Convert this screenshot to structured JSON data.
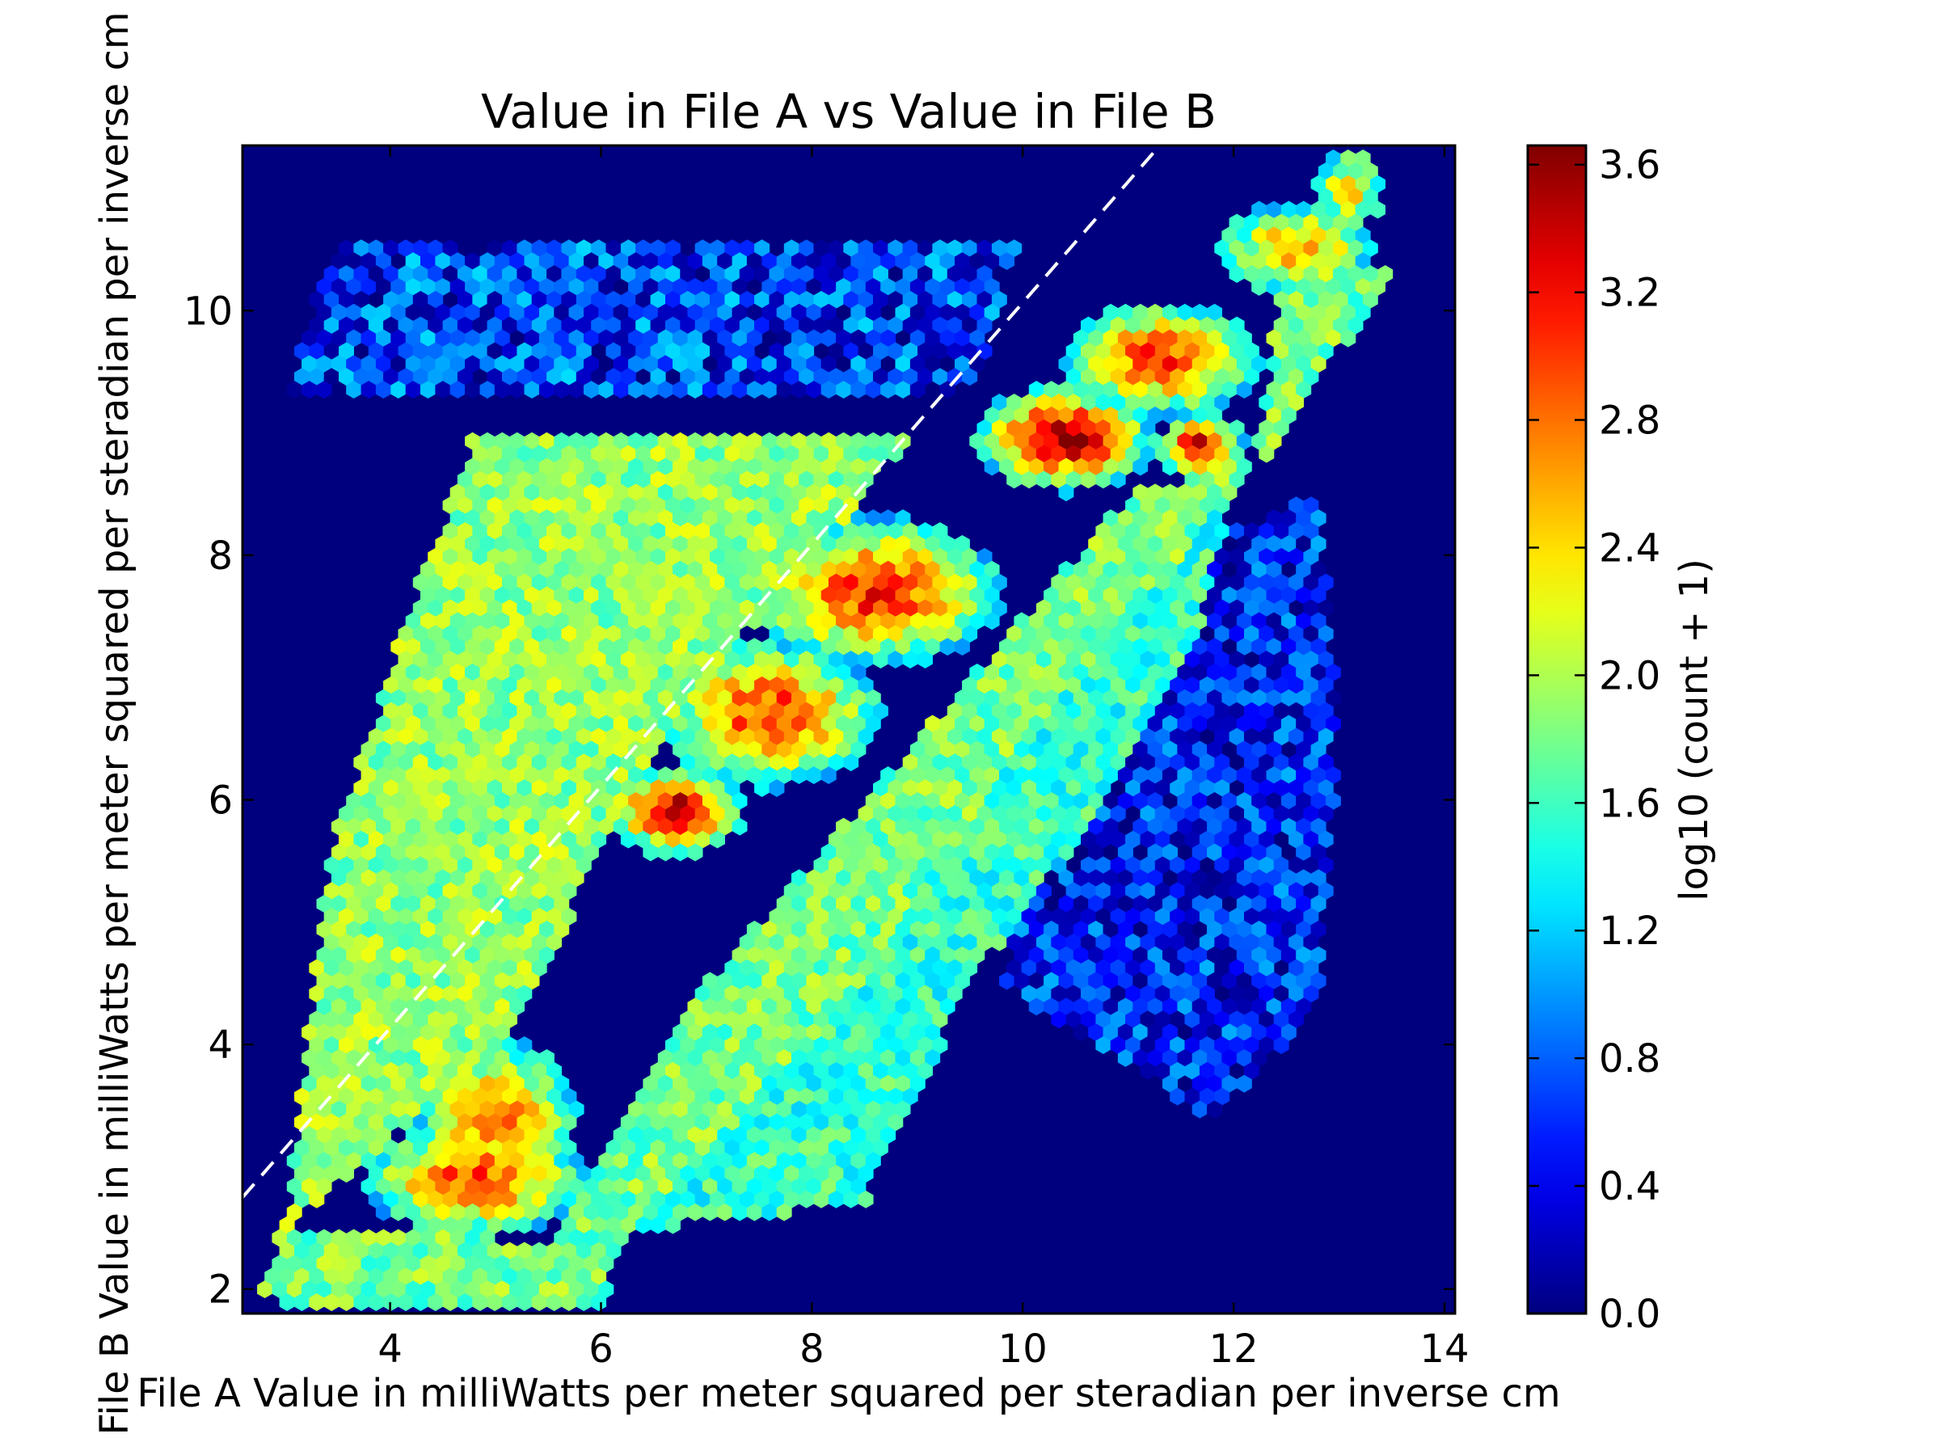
{
  "chart_data": {
    "type": "heatmap",
    "subtype": "hexbin",
    "title": "Value in File A vs Value in File B",
    "xlabel": "File A Value in milliWatts per meter squared per steradian per inverse cm",
    "ylabel": "File B Value in milliWatts per meter squared per steradian per inverse cm",
    "xlim": [
      2.6,
      14.1
    ],
    "ylim": [
      1.8,
      11.35
    ],
    "xticks": [
      4,
      6,
      8,
      10,
      12,
      14
    ],
    "yticks": [
      2,
      4,
      6,
      8,
      10
    ],
    "background_color": "#00007f",
    "grid": false,
    "colorbar": {
      "label": "log10 (count + 1)",
      "min": 0.0,
      "max": 3.66,
      "ticks": [
        "0.0",
        "0.4",
        "0.8",
        "1.2",
        "1.6",
        "2.0",
        "2.4",
        "2.8",
        "3.2",
        "3.6"
      ],
      "colormap": "jet"
    },
    "reference_line": {
      "label": "y = x",
      "style": "dashed",
      "color": "#ffffff",
      "from": [
        2.6,
        2.75
      ],
      "to": [
        11.3,
        11.35
      ]
    },
    "density_components": [
      {
        "center": [
          4.8,
          2.9
        ],
        "spread": [
          0.8,
          0.35
        ],
        "peak": 2.95
      },
      {
        "center": [
          5.0,
          3.4
        ],
        "spread": [
          0.6,
          0.5
        ],
        "peak": 2.75
      },
      {
        "center": [
          6.7,
          5.9
        ],
        "spread": [
          0.45,
          0.25
        ],
        "peak": 3.55
      },
      {
        "center": [
          7.6,
          6.7
        ],
        "spread": [
          0.8,
          0.45
        ],
        "peak": 3.0
      },
      {
        "center": [
          8.6,
          7.7
        ],
        "spread": [
          0.9,
          0.45
        ],
        "peak": 3.1
      },
      {
        "center": [
          10.4,
          8.95
        ],
        "spread": [
          0.6,
          0.3
        ],
        "peak": 3.55
      },
      {
        "center": [
          11.7,
          8.9
        ],
        "spread": [
          0.3,
          0.2
        ],
        "peak": 3.3
      },
      {
        "center": [
          11.3,
          9.6
        ],
        "spread": [
          0.7,
          0.35
        ],
        "peak": 3.0
      },
      {
        "center": [
          12.6,
          10.5
        ],
        "spread": [
          0.6,
          0.3
        ],
        "peak": 2.6
      },
      {
        "center": [
          13.1,
          11.0
        ],
        "spread": [
          0.3,
          0.3
        ],
        "peak": 2.3
      }
    ],
    "density_regions": [
      {
        "description": "core band",
        "polygon": [
          [
            2.7,
            2.0
          ],
          [
            3.0,
            2.5
          ],
          [
            5.5,
            2.4
          ],
          [
            7.0,
            4.5
          ],
          [
            9.5,
            7.0
          ],
          [
            11.0,
            8.5
          ],
          [
            12.2,
            8.8
          ],
          [
            12.5,
            10.5
          ],
          [
            13.5,
            10.3
          ],
          [
            12.5,
            9.0
          ],
          [
            11.5,
            8.0
          ],
          [
            10.0,
            6.5
          ],
          [
            8.5,
            4.5
          ],
          [
            6.3,
            2.5
          ],
          [
            6.0,
            1.85
          ],
          [
            3.0,
            1.85
          ]
        ],
        "level": 1.8
      },
      {
        "description": "upper-left plateau",
        "polygon": [
          [
            3.0,
            2.5
          ],
          [
            3.4,
            5.5
          ],
          [
            4.2,
            7.6
          ],
          [
            4.8,
            9.0
          ],
          [
            7.6,
            9.0
          ],
          [
            9.0,
            9.0
          ],
          [
            7.0,
            7.0
          ],
          [
            5.0,
            4.0
          ]
        ],
        "level": 1.9
      },
      {
        "description": "lower-right plateau",
        "polygon": [
          [
            5.5,
            2.4
          ],
          [
            8.5,
            2.7
          ],
          [
            9.5,
            4.5
          ],
          [
            10.8,
            6.0
          ],
          [
            11.6,
            7.2
          ],
          [
            12.0,
            8.5
          ],
          [
            10.5,
            8.0
          ],
          [
            8.5,
            6.0
          ],
          [
            6.5,
            3.8
          ]
        ],
        "level": 1.55
      },
      {
        "description": "top sparse strip",
        "polygon": [
          [
            3.0,
            9.3
          ],
          [
            3.5,
            10.6
          ],
          [
            10.0,
            10.6
          ],
          [
            9.5,
            9.3
          ]
        ],
        "level": 0.9
      },
      {
        "description": "right sparse region",
        "polygon": [
          [
            9.8,
            4.5
          ],
          [
            10.8,
            3.9
          ],
          [
            11.8,
            3.4
          ],
          [
            12.8,
            4.3
          ],
          [
            13.0,
            6.6
          ],
          [
            12.8,
            8.5
          ],
          [
            11.5,
            8.0
          ],
          [
            10.5,
            6.5
          ]
        ],
        "level": 0.75
      }
    ]
  }
}
